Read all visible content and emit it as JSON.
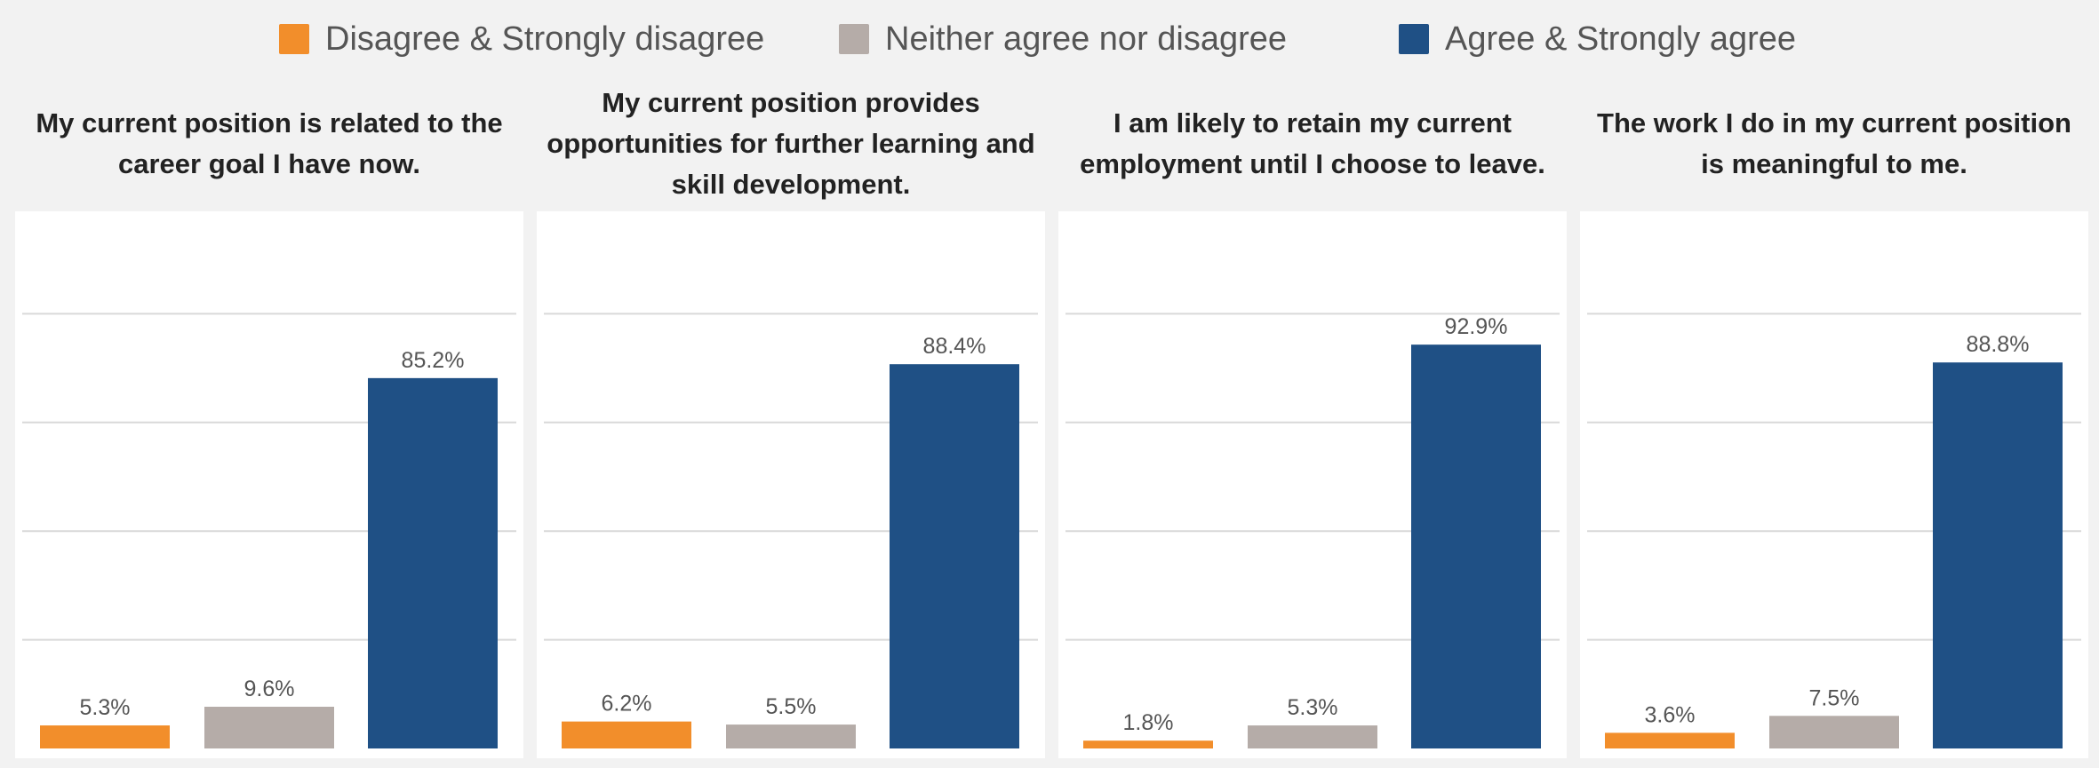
{
  "legend": [
    {
      "label": "Disagree & Strongly disagree",
      "color": "#f28e2b"
    },
    {
      "label": "Neither agree nor disagree",
      "color": "#b5aca8"
    },
    {
      "label": "Agree & Strongly agree",
      "color": "#1f5085"
    }
  ],
  "chart_data": [
    {
      "type": "bar",
      "title": "My current position is related to the career goal I have now.",
      "categories": [
        "Disagree & Strongly disagree",
        "Neither agree nor disagree",
        "Agree & Strongly agree"
      ],
      "values": [
        5.3,
        9.6,
        85.2
      ],
      "value_labels": [
        "5.3%",
        "9.6%",
        "85.2%"
      ],
      "ylim": [
        0,
        100
      ],
      "grid": true
    },
    {
      "type": "bar",
      "title": "My current position provides opportunities for further learning and skill development.",
      "categories": [
        "Disagree & Strongly disagree",
        "Neither agree nor disagree",
        "Agree & Strongly agree"
      ],
      "values": [
        6.2,
        5.5,
        88.4
      ],
      "value_labels": [
        "6.2%",
        "5.5%",
        "88.4%"
      ],
      "ylim": [
        0,
        100
      ],
      "grid": true
    },
    {
      "type": "bar",
      "title": "I am likely to retain my current employment until I choose to leave.",
      "categories": [
        "Disagree & Strongly disagree",
        "Neither agree nor disagree",
        "Agree & Strongly agree"
      ],
      "values": [
        1.8,
        5.3,
        92.9
      ],
      "value_labels": [
        "1.8%",
        "5.3%",
        "92.9%"
      ],
      "ylim": [
        0,
        100
      ],
      "grid": true
    },
    {
      "type": "bar",
      "title": "The work I do in my current position is meaningful to me.",
      "categories": [
        "Disagree & Strongly disagree",
        "Neither agree nor disagree",
        "Agree & Strongly agree"
      ],
      "values": [
        3.6,
        7.5,
        88.8
      ],
      "value_labels": [
        "3.6%",
        "7.5%",
        "88.8%"
      ],
      "ylim": [
        0,
        100
      ],
      "grid": true
    }
  ]
}
